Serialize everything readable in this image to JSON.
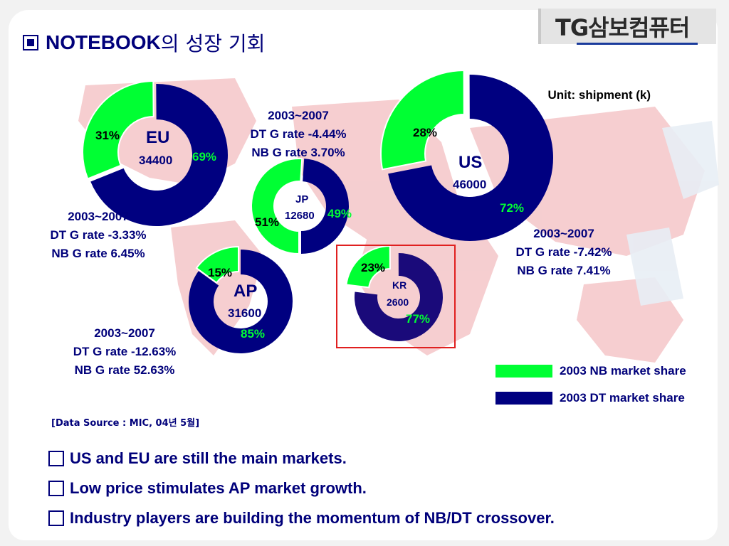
{
  "header": {
    "title_main": "NOTEBOOK",
    "title_suffix": "의 성장 기회",
    "logo_text": "TG삼보컴퓨터"
  },
  "unit_label": "Unit: shipment (k)",
  "colors": {
    "nb": "#00ff33",
    "dt": "#000080",
    "map": "#f4c6c8",
    "text": "#00007a",
    "highlight_box": "#e02020"
  },
  "chart_data": [
    {
      "type": "pie",
      "region": "EU",
      "total": "34400",
      "series": [
        {
          "name": "2003 NB market share",
          "value": 31,
          "label": "31%"
        },
        {
          "name": "2003 DT market share",
          "value": 69,
          "label": "69%"
        }
      ]
    },
    {
      "type": "pie",
      "region": "JP",
      "total": "12680",
      "series": [
        {
          "name": "2003 NB market share",
          "value": 51,
          "label": "51%"
        },
        {
          "name": "2003 DT market share",
          "value": 49,
          "label": "49%"
        }
      ]
    },
    {
      "type": "pie",
      "region": "US",
      "total": "46000",
      "series": [
        {
          "name": "2003 NB market share",
          "value": 28,
          "label": "28%"
        },
        {
          "name": "2003 DT market share",
          "value": 72,
          "label": "72%"
        }
      ]
    },
    {
      "type": "pie",
      "region": "AP",
      "total": "31600",
      "series": [
        {
          "name": "2003 NB market share",
          "value": 15,
          "label": "15%"
        },
        {
          "name": "2003 DT market share",
          "value": 85,
          "label": "85%"
        }
      ]
    },
    {
      "type": "pie",
      "region": "KR",
      "total": "2600",
      "series": [
        {
          "name": "2003 NB market share",
          "value": 23,
          "label": "23%"
        },
        {
          "name": "2003 DT market share",
          "value": 77,
          "label": "77%"
        }
      ]
    }
  ],
  "notes": {
    "jp": [
      "2003~2007",
      "DT G rate -4.44%",
      "NB G rate  3.70%"
    ],
    "eu": [
      "2003~2007",
      "DT G rate -3.33%",
      "NB G rate  6.45%"
    ],
    "us": [
      "2003~2007",
      "DT G rate -7.42%",
      "NB G rate  7.41%"
    ],
    "ap": [
      "2003~2007",
      "DT G rate -12.63%",
      "NB G rate  52.63%"
    ]
  },
  "legend": {
    "nb": "2003 NB market share",
    "dt": "2003 DT market share"
  },
  "source": "[Data Source : MIC, 04년 5월]",
  "bullets": [
    "US and EU are still the main markets.",
    "Low price stimulates AP market growth.",
    "Industry players are building the momentum of NB/DT crossover."
  ]
}
